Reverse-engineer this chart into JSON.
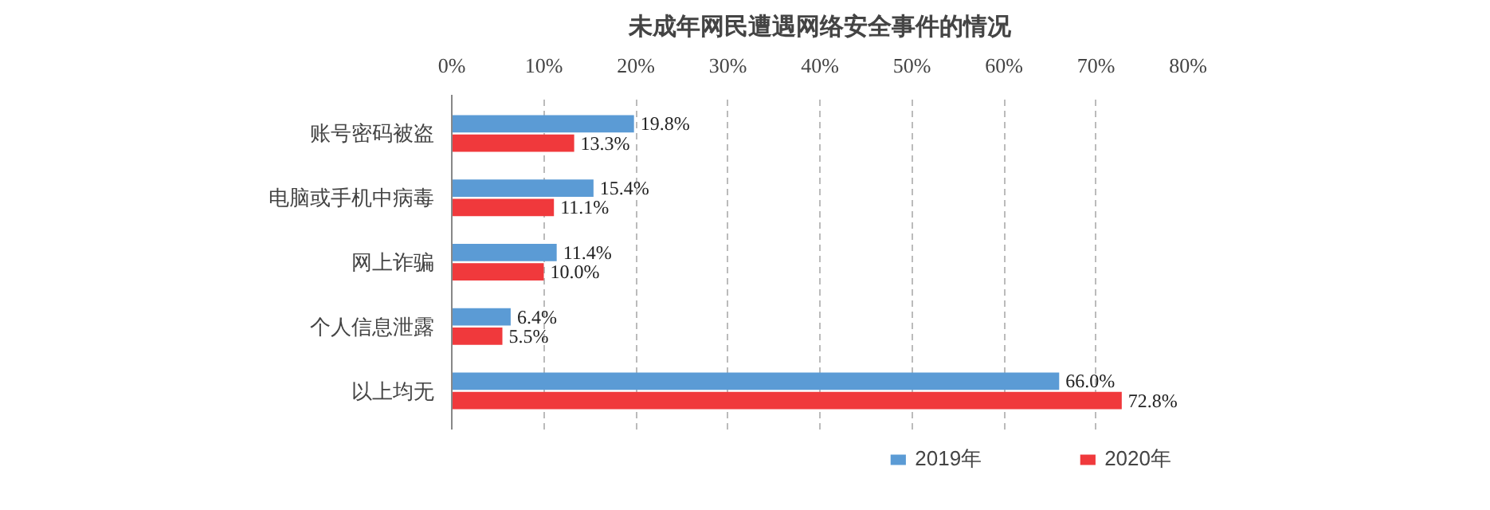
{
  "chart_data": {
    "type": "bar",
    "orientation": "horizontal",
    "title": "未成年网民遭遇网络安全事件的情况",
    "categories": [
      "账号密码被盗",
      "电脑或手机中病毒",
      "网上诈骗",
      "个人信息泄露",
      "以上均无"
    ],
    "series": [
      {
        "name": "2019年",
        "color": "#5b9bd5",
        "values": [
          19.8,
          15.4,
          11.4,
          6.4,
          66.0
        ],
        "value_labels": [
          "19.8%",
          "15.4%",
          "11.4%",
          "6.4%",
          "66.0%"
        ]
      },
      {
        "name": "2020年",
        "color": "#f0393c",
        "values": [
          13.3,
          11.1,
          10.0,
          5.5,
          72.8
        ],
        "value_labels": [
          "13.3%",
          "11.1%",
          "10.0%",
          "5.5%",
          "72.8%"
        ]
      }
    ],
    "xlim": [
      0,
      80
    ],
    "xticks": [
      {
        "value": 0,
        "label": "0%"
      },
      {
        "value": 10,
        "label": "10%"
      },
      {
        "value": 20,
        "label": "20%"
      },
      {
        "value": 30,
        "label": "30%"
      },
      {
        "value": 40,
        "label": "40%"
      },
      {
        "value": 50,
        "label": "50%"
      },
      {
        "value": 60,
        "label": "60%"
      },
      {
        "value": 70,
        "label": "70%"
      },
      {
        "value": 80,
        "label": "80%"
      }
    ],
    "grid": "x",
    "legend": "bottom"
  }
}
